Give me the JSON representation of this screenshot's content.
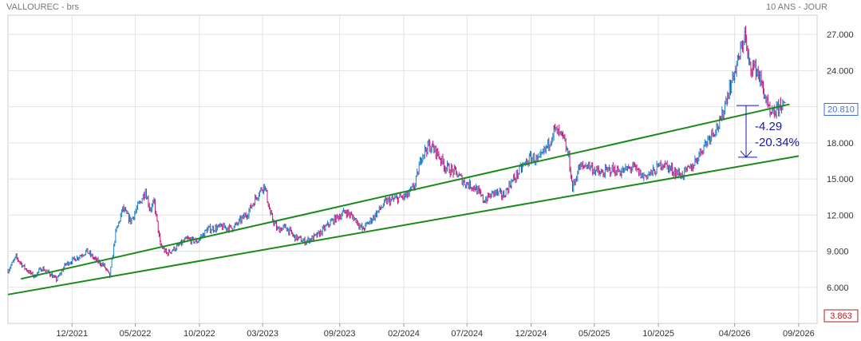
{
  "header": {
    "title": "VALLOUREC - brs",
    "period": "10 ANS - JOUR"
  },
  "badges": {
    "last_price": "20.810",
    "low_marker": "3.863"
  },
  "colors": {
    "up": "#1f7fc7",
    "down": "#c0147c",
    "trendline": "#1a8a1a",
    "annotation": "#1a1aa0",
    "grid": "#e3e3e3",
    "last_price_border": "#3d6fd6",
    "low_marker_border": "#b02020"
  },
  "chart_data": {
    "type": "line",
    "title": "VALLOUREC - brs",
    "xlabel": "",
    "ylabel": "",
    "x_ticks": [
      "12/2021",
      "05/2022",
      "10/2022",
      "03/2023",
      "09/2023",
      "02/2024",
      "07/2024",
      "12/2024",
      "05/2025",
      "10/2025",
      "04/2026",
      "09/2026"
    ],
    "y_ticks": [
      "6.000",
      "9.000",
      "12.000",
      "15.000",
      "18.000",
      "21.000",
      "24.000",
      "27.000"
    ],
    "ylim": [
      3.0,
      28.6
    ],
    "xlim": [
      "2021-07-01",
      "2026-10-15"
    ],
    "grid": true,
    "series": [
      {
        "type": "price",
        "points": [
          [
            "2021-07-01",
            7.4
          ],
          [
            "2021-07-20",
            8.5
          ],
          [
            "2021-08-10",
            7.6
          ],
          [
            "2021-09-01",
            6.9
          ],
          [
            "2021-09-20",
            7.6
          ],
          [
            "2021-10-10",
            7.1
          ],
          [
            "2021-10-25",
            6.6
          ],
          [
            "2021-11-15",
            7.9
          ],
          [
            "2021-12-10",
            8.4
          ],
          [
            "2022-01-05",
            9.0
          ],
          [
            "2022-01-25",
            8.3
          ],
          [
            "2022-02-15",
            7.8
          ],
          [
            "2022-03-01",
            6.9
          ],
          [
            "2022-03-15",
            10.5
          ],
          [
            "2022-04-01",
            12.5
          ],
          [
            "2022-04-20",
            11.5
          ],
          [
            "2022-05-10",
            12.9
          ],
          [
            "2022-05-25",
            14.0
          ],
          [
            "2022-06-05",
            12.5
          ],
          [
            "2022-06-15",
            13.0
          ],
          [
            "2022-06-30",
            9.5
          ],
          [
            "2022-07-15",
            8.8
          ],
          [
            "2022-08-10",
            9.4
          ],
          [
            "2022-09-01",
            10.0
          ],
          [
            "2022-09-25",
            9.8
          ],
          [
            "2022-10-20",
            10.8
          ],
          [
            "2022-11-20",
            11.0
          ],
          [
            "2022-12-20",
            10.9
          ],
          [
            "2023-01-25",
            12.2
          ],
          [
            "2023-02-15",
            13.6
          ],
          [
            "2023-03-05",
            14.5
          ],
          [
            "2023-03-20",
            12.0
          ],
          [
            "2023-04-05",
            10.8
          ],
          [
            "2023-04-25",
            11.0
          ],
          [
            "2023-05-15",
            10.2
          ],
          [
            "2023-06-10",
            9.8
          ],
          [
            "2023-07-10",
            10.3
          ],
          [
            "2023-08-10",
            11.4
          ],
          [
            "2023-09-15",
            12.3
          ],
          [
            "2023-10-10",
            11.6
          ],
          [
            "2023-10-25",
            10.8
          ],
          [
            "2023-11-20",
            11.8
          ],
          [
            "2023-12-20",
            13.1
          ],
          [
            "2024-01-20",
            13.4
          ],
          [
            "2024-02-10",
            13.6
          ],
          [
            "2024-02-28",
            14.5
          ],
          [
            "2024-03-15",
            17.0
          ],
          [
            "2024-04-01",
            17.8
          ],
          [
            "2024-04-20",
            17.2
          ],
          [
            "2024-05-10",
            16.0
          ],
          [
            "2024-06-05",
            15.5
          ],
          [
            "2024-06-25",
            14.7
          ],
          [
            "2024-07-20",
            14.3
          ],
          [
            "2024-08-10",
            13.2
          ],
          [
            "2024-09-05",
            13.9
          ],
          [
            "2024-09-25",
            13.6
          ],
          [
            "2024-10-15",
            14.7
          ],
          [
            "2024-11-10",
            16.0
          ],
          [
            "2024-12-01",
            16.8
          ],
          [
            "2024-12-20",
            16.5
          ],
          [
            "2025-01-10",
            17.8
          ],
          [
            "2025-01-25",
            19.1
          ],
          [
            "2025-02-15",
            18.4
          ],
          [
            "2025-03-01",
            16.8
          ],
          [
            "2025-03-10",
            14.2
          ],
          [
            "2025-03-25",
            15.9
          ],
          [
            "2025-04-15",
            16.2
          ],
          [
            "2025-05-15",
            15.4
          ],
          [
            "2025-06-10",
            15.8
          ],
          [
            "2025-07-05",
            15.6
          ],
          [
            "2025-08-01",
            16.0
          ],
          [
            "2025-08-25",
            15.2
          ],
          [
            "2025-09-20",
            15.6
          ],
          [
            "2025-10-10",
            16.3
          ],
          [
            "2025-11-01",
            15.8
          ],
          [
            "2025-11-25",
            15.3
          ],
          [
            "2025-12-20",
            16.0
          ],
          [
            "2026-01-15",
            17.6
          ],
          [
            "2026-02-05",
            18.8
          ],
          [
            "2026-02-25",
            19.6
          ],
          [
            "2026-03-15",
            22.0
          ],
          [
            "2026-04-01",
            23.8
          ],
          [
            "2026-04-15",
            25.5
          ],
          [
            "2026-04-25",
            27.0
          ],
          [
            "2026-05-05",
            24.6
          ],
          [
            "2026-05-25",
            24.0
          ],
          [
            "2026-06-10",
            22.2
          ],
          [
            "2026-06-25",
            20.2
          ],
          [
            "2026-07-10",
            20.6
          ],
          [
            "2026-07-20",
            21.3
          ],
          [
            "2026-07-31",
            20.81
          ]
        ]
      },
      {
        "type": "trendline",
        "points": [
          [
            "2021-08-01",
            6.7
          ],
          [
            "2026-08-10",
            21.2
          ]
        ]
      },
      {
        "type": "trendline",
        "points": [
          [
            "2021-07-01",
            5.4
          ],
          [
            "2026-09-01",
            16.9
          ]
        ]
      }
    ],
    "annotations": [
      {
        "text": "-4.29",
        "from": 21.1,
        "to": 16.8
      },
      {
        "text": "-20.34%"
      }
    ]
  }
}
